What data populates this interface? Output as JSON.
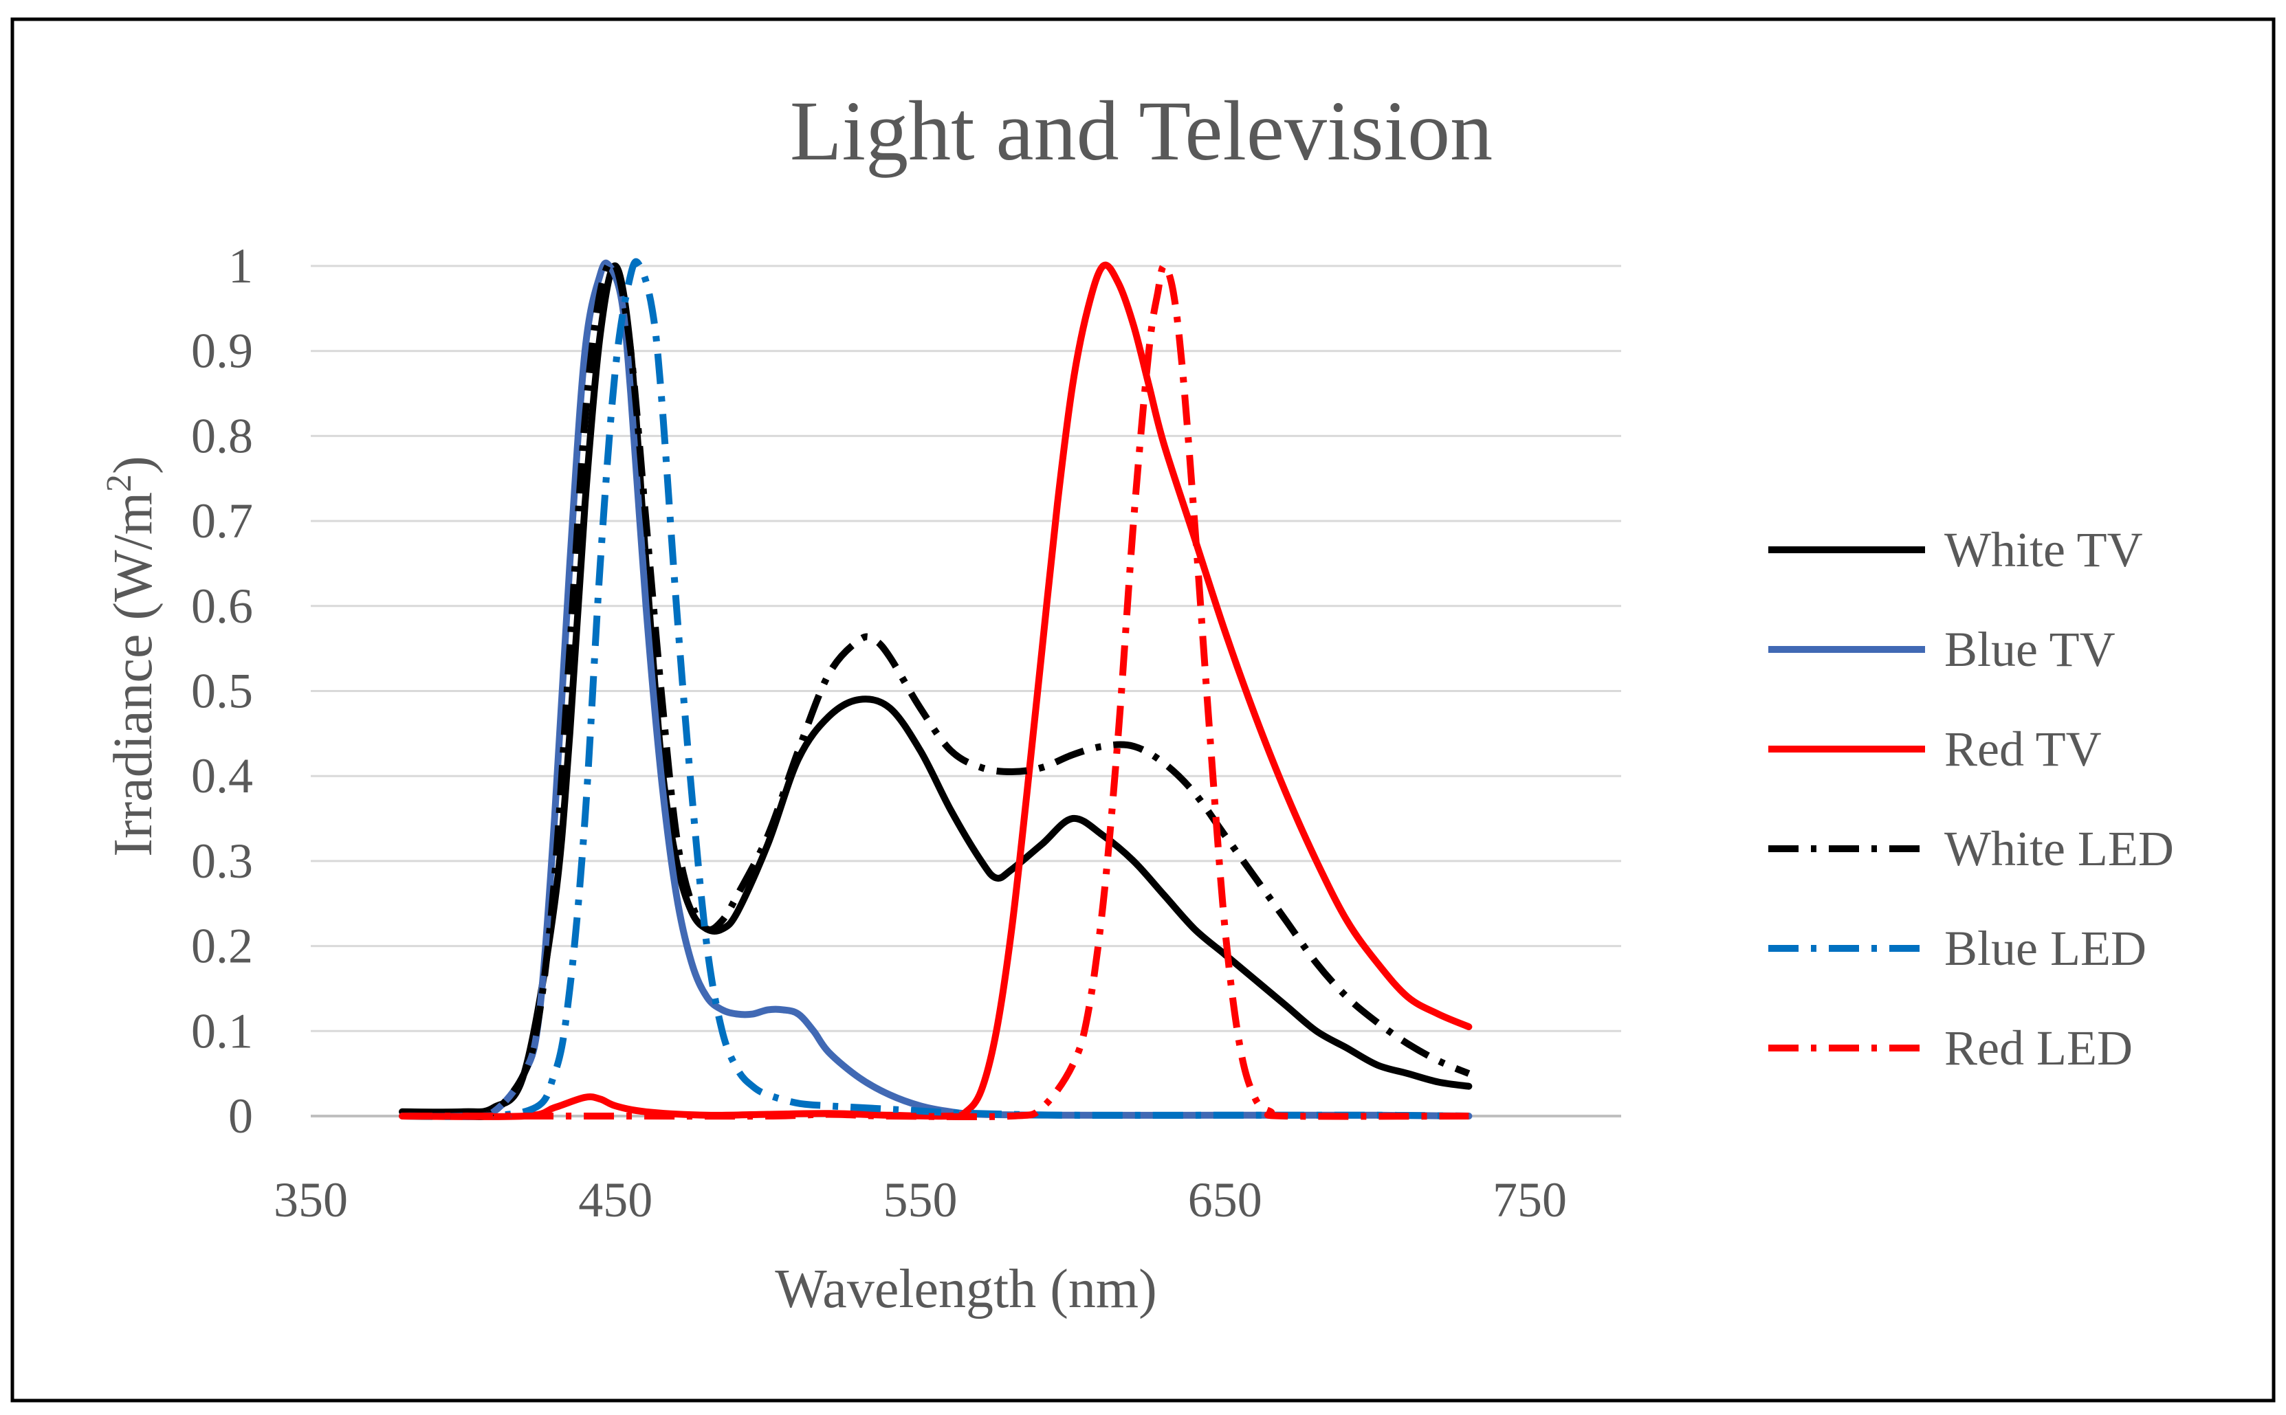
{
  "chart_data": {
    "type": "line",
    "title": "Light and Television",
    "xlabel": "Wavelength (nm)",
    "ylabel_main": "Irradiance (W/m",
    "ylabel_sup": "2",
    "ylabel_end": ")",
    "xlim": [
      350,
      780
    ],
    "ylim": [
      0,
      1
    ],
    "x_ticks": [
      350,
      450,
      550,
      650,
      750
    ],
    "x_tick_labels": [
      "350",
      "450",
      "550",
      "650",
      "750"
    ],
    "y_ticks": [
      0,
      0.1,
      0.2,
      0.3,
      0.4,
      0.5,
      0.6,
      0.7,
      0.8,
      0.9,
      1
    ],
    "y_tick_labels": [
      "0",
      "0.1",
      "0.2",
      "0.3",
      "0.4",
      "0.5",
      "0.6",
      "0.7",
      "0.8",
      "0.9",
      "1"
    ],
    "grid": true,
    "legend_position": "right",
    "series": [
      {
        "name": "White TV",
        "color": "#000000",
        "style": "solid",
        "points": [
          [
            380,
            0.005
          ],
          [
            400,
            0.005
          ],
          [
            410,
            0.01
          ],
          [
            420,
            0.05
          ],
          [
            430,
            0.25
          ],
          [
            435,
            0.45
          ],
          [
            440,
            0.72
          ],
          [
            445,
            0.92
          ],
          [
            450,
            1.0
          ],
          [
            455,
            0.9
          ],
          [
            460,
            0.65
          ],
          [
            465,
            0.42
          ],
          [
            470,
            0.3
          ],
          [
            475,
            0.24
          ],
          [
            480,
            0.22
          ],
          [
            485,
            0.22
          ],
          [
            490,
            0.24
          ],
          [
            500,
            0.32
          ],
          [
            510,
            0.42
          ],
          [
            520,
            0.47
          ],
          [
            530,
            0.49
          ],
          [
            540,
            0.48
          ],
          [
            550,
            0.43
          ],
          [
            560,
            0.36
          ],
          [
            570,
            0.3
          ],
          [
            575,
            0.28
          ],
          [
            580,
            0.29
          ],
          [
            590,
            0.32
          ],
          [
            600,
            0.35
          ],
          [
            610,
            0.33
          ],
          [
            620,
            0.3
          ],
          [
            630,
            0.26
          ],
          [
            640,
            0.22
          ],
          [
            650,
            0.19
          ],
          [
            660,
            0.16
          ],
          [
            670,
            0.13
          ],
          [
            680,
            0.1
          ],
          [
            690,
            0.08
          ],
          [
            700,
            0.06
          ],
          [
            710,
            0.05
          ],
          [
            720,
            0.04
          ],
          [
            730,
            0.035
          ]
        ]
      },
      {
        "name": "Blue TV",
        "color": "#4169b4",
        "style": "solid",
        "points": [
          [
            380,
            0.0
          ],
          [
            400,
            0.0
          ],
          [
            410,
            0.005
          ],
          [
            420,
            0.05
          ],
          [
            425,
            0.12
          ],
          [
            430,
            0.35
          ],
          [
            435,
            0.65
          ],
          [
            440,
            0.9
          ],
          [
            445,
            0.99
          ],
          [
            448,
            1.0
          ],
          [
            452,
            0.96
          ],
          [
            455,
            0.85
          ],
          [
            460,
            0.6
          ],
          [
            465,
            0.4
          ],
          [
            470,
            0.26
          ],
          [
            475,
            0.18
          ],
          [
            480,
            0.14
          ],
          [
            485,
            0.125
          ],
          [
            490,
            0.12
          ],
          [
            495,
            0.12
          ],
          [
            500,
            0.125
          ],
          [
            505,
            0.125
          ],
          [
            510,
            0.12
          ],
          [
            515,
            0.1
          ],
          [
            520,
            0.075
          ],
          [
            530,
            0.045
          ],
          [
            540,
            0.025
          ],
          [
            550,
            0.012
          ],
          [
            560,
            0.005
          ],
          [
            570,
            0.002
          ],
          [
            600,
            0.001
          ],
          [
            650,
            0.001
          ],
          [
            700,
            0.001
          ],
          [
            730,
            0.0
          ]
        ]
      },
      {
        "name": "Red TV",
        "color": "#ff0000",
        "style": "solid",
        "points": [
          [
            380,
            0.0
          ],
          [
            420,
            0.0
          ],
          [
            430,
            0.01
          ],
          [
            440,
            0.022
          ],
          [
            445,
            0.02
          ],
          [
            450,
            0.012
          ],
          [
            460,
            0.005
          ],
          [
            480,
            0.001
          ],
          [
            500,
            0.002
          ],
          [
            520,
            0.003
          ],
          [
            540,
            0.001
          ],
          [
            560,
            0.0
          ],
          [
            565,
            0.005
          ],
          [
            570,
            0.03
          ],
          [
            575,
            0.1
          ],
          [
            580,
            0.22
          ],
          [
            585,
            0.38
          ],
          [
            590,
            0.55
          ],
          [
            595,
            0.72
          ],
          [
            600,
            0.86
          ],
          [
            605,
            0.95
          ],
          [
            610,
            1.0
          ],
          [
            615,
            0.98
          ],
          [
            620,
            0.93
          ],
          [
            625,
            0.86
          ],
          [
            630,
            0.79
          ],
          [
            640,
            0.68
          ],
          [
            650,
            0.57
          ],
          [
            660,
            0.47
          ],
          [
            670,
            0.38
          ],
          [
            680,
            0.3
          ],
          [
            690,
            0.23
          ],
          [
            700,
            0.18
          ],
          [
            710,
            0.14
          ],
          [
            720,
            0.12
          ],
          [
            730,
            0.105
          ]
        ]
      },
      {
        "name": "White LED",
        "color": "#000000",
        "style": "dashdot",
        "points": [
          [
            380,
            0.0
          ],
          [
            400,
            0.0
          ],
          [
            410,
            0.005
          ],
          [
            420,
            0.05
          ],
          [
            425,
            0.12
          ],
          [
            430,
            0.28
          ],
          [
            435,
            0.55
          ],
          [
            440,
            0.82
          ],
          [
            445,
            0.97
          ],
          [
            450,
            1.0
          ],
          [
            455,
            0.9
          ],
          [
            460,
            0.7
          ],
          [
            465,
            0.5
          ],
          [
            470,
            0.33
          ],
          [
            475,
            0.25
          ],
          [
            480,
            0.22
          ],
          [
            485,
            0.23
          ],
          [
            490,
            0.26
          ],
          [
            500,
            0.33
          ],
          [
            510,
            0.43
          ],
          [
            520,
            0.52
          ],
          [
            530,
            0.56
          ],
          [
            535,
            0.56
          ],
          [
            540,
            0.54
          ],
          [
            550,
            0.48
          ],
          [
            560,
            0.43
          ],
          [
            570,
            0.41
          ],
          [
            580,
            0.405
          ],
          [
            590,
            0.41
          ],
          [
            600,
            0.425
          ],
          [
            610,
            0.435
          ],
          [
            620,
            0.435
          ],
          [
            630,
            0.415
          ],
          [
            640,
            0.38
          ],
          [
            650,
            0.33
          ],
          [
            660,
            0.28
          ],
          [
            670,
            0.23
          ],
          [
            680,
            0.18
          ],
          [
            690,
            0.14
          ],
          [
            700,
            0.11
          ],
          [
            710,
            0.085
          ],
          [
            720,
            0.065
          ],
          [
            730,
            0.05
          ]
        ]
      },
      {
        "name": "Blue LED",
        "color": "#0070c0",
        "style": "dashdot",
        "points": [
          [
            380,
            0.0
          ],
          [
            420,
            0.005
          ],
          [
            430,
            0.05
          ],
          [
            435,
            0.15
          ],
          [
            440,
            0.35
          ],
          [
            445,
            0.65
          ],
          [
            450,
            0.88
          ],
          [
            455,
            0.99
          ],
          [
            458,
            1.0
          ],
          [
            462,
            0.95
          ],
          [
            465,
            0.85
          ],
          [
            470,
            0.6
          ],
          [
            475,
            0.38
          ],
          [
            480,
            0.2
          ],
          [
            485,
            0.1
          ],
          [
            490,
            0.055
          ],
          [
            495,
            0.035
          ],
          [
            500,
            0.025
          ],
          [
            510,
            0.015
          ],
          [
            520,
            0.012
          ],
          [
            530,
            0.01
          ],
          [
            540,
            0.008
          ],
          [
            550,
            0.006
          ],
          [
            560,
            0.004
          ],
          [
            580,
            0.002
          ],
          [
            600,
            0.001
          ],
          [
            650,
            0.001
          ],
          [
            700,
            0.001
          ],
          [
            730,
            0.0
          ]
        ]
      },
      {
        "name": "Red LED",
        "color": "#ff0000",
        "style": "dashdot",
        "points": [
          [
            380,
            0.0
          ],
          [
            450,
            0.0
          ],
          [
            500,
            0.0
          ],
          [
            520,
            0.002
          ],
          [
            540,
            0.0
          ],
          [
            580,
            0.0
          ],
          [
            590,
            0.01
          ],
          [
            600,
            0.06
          ],
          [
            605,
            0.12
          ],
          [
            610,
            0.25
          ],
          [
            615,
            0.45
          ],
          [
            620,
            0.7
          ],
          [
            625,
            0.9
          ],
          [
            628,
            0.97
          ],
          [
            630,
            1.0
          ],
          [
            633,
            0.97
          ],
          [
            636,
            0.88
          ],
          [
            640,
            0.7
          ],
          [
            645,
            0.45
          ],
          [
            650,
            0.22
          ],
          [
            655,
            0.08
          ],
          [
            660,
            0.02
          ],
          [
            665,
            0.005
          ],
          [
            670,
            0.0
          ],
          [
            730,
            0.0
          ]
        ]
      }
    ]
  }
}
